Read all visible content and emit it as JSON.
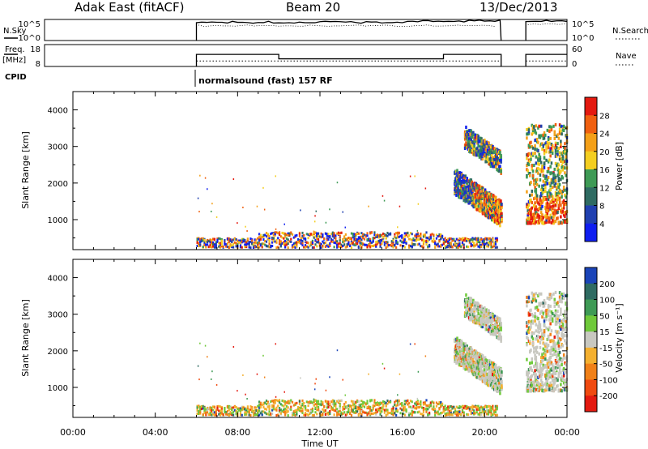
{
  "header": {
    "station": "Adak East (fitACF)",
    "beam": "Beam 20",
    "date": "13/Dec/2013"
  },
  "nsky": {
    "label": "N.Sky",
    "ticks": [
      "10^5",
      "10^0"
    ],
    "right_ticks": [
      "10^5",
      "10^0"
    ],
    "right_label": "N.Search"
  },
  "freq": {
    "label": "Freq.",
    "unit": "[MHz]",
    "ticks": [
      "18",
      "8"
    ],
    "right_ticks": [
      "60",
      "0"
    ],
    "right_label": "Nave"
  },
  "cpid": {
    "label": "CPID",
    "text": "normalsound (fast) 157 RF"
  },
  "x_axis": {
    "label": "Time UT",
    "ticks": [
      "00:00",
      "04:00",
      "08:00",
      "12:00",
      "16:00",
      "20:00",
      "00:00"
    ]
  },
  "colors": {
    "power": [
      "#0f1ef0",
      "#2040b0",
      "#2f6b62",
      "#3e9a55",
      "#f4ce20",
      "#f4a018",
      "#f06010",
      "#e41a10"
    ],
    "velocity": [
      "#e41a10",
      "#f04a10",
      "#f08018",
      "#f4b030",
      "#c8c8c0",
      "#6fc93a",
      "#3e9a55",
      "#2f6b62",
      "#1a44b8"
    ]
  },
  "chart_data": [
    {
      "type": "line",
      "panel": "N.Sky / N.Search",
      "x_units": "hours UT",
      "segments": [
        {
          "x": [
            6.0,
            6.0,
            20.8,
            20.8
          ],
          "level": 0.82
        },
        {
          "x": [
            22.0,
            22.0,
            24.0
          ],
          "level": 0.9
        }
      ]
    },
    {
      "type": "line",
      "panel": "Frequency / Nave",
      "x_units": "hours UT",
      "frequency_mhz": [
        {
          "start": 6.0,
          "end": 10.0,
          "value": 13.5
        },
        {
          "start": 10.0,
          "end": 18.0,
          "value": 11.5
        },
        {
          "start": 18.0,
          "end": 20.8,
          "value": 13.5
        },
        {
          "start": 22.0,
          "end": 24.0,
          "value": 13.5
        }
      ],
      "nave": [
        {
          "start": 6.0,
          "end": 20.8,
          "value": 15
        },
        {
          "start": 22.0,
          "end": 24.0,
          "value": 15
        }
      ]
    },
    {
      "type": "heatmap",
      "title": "Power",
      "ylabel": "Slant Range [km]",
      "xlabel": "Time UT",
      "xlim": [
        0,
        24
      ],
      "ylim": [
        180,
        4500
      ],
      "yticks": [
        "1000",
        "2000",
        "3000",
        "4000"
      ],
      "colorbar": {
        "label": "Power [dB]",
        "ticks": [
          "28",
          "24",
          "20",
          "16",
          "12",
          "8",
          "4"
        ]
      },
      "regions": [
        {
          "name": "ground scatter band",
          "t": [
            6.0,
            20.5
          ],
          "range": [
            200,
            500
          ]
        },
        {
          "name": "upper band",
          "t": [
            19.0,
            20.8
          ],
          "range": [
            2500,
            3400
          ]
        },
        {
          "name": "lower band",
          "t": [
            18.5,
            20.8
          ],
          "range": [
            900,
            2200
          ]
        },
        {
          "name": "late block",
          "t": [
            22.0,
            24.0
          ],
          "range": [
            850,
            3500
          ]
        }
      ]
    },
    {
      "type": "heatmap",
      "title": "Velocity",
      "ylabel": "Slant Range [km]",
      "xlabel": "Time UT",
      "xlim": [
        0,
        24
      ],
      "ylim": [
        180,
        4500
      ],
      "yticks": [
        "1000",
        "2000",
        "3000",
        "4000"
      ],
      "colorbar": {
        "label": "Velocity [m s⁻¹]",
        "ticks": [
          "200",
          "100",
          "50",
          "15",
          "-15",
          "-50",
          "-100",
          "-200"
        ]
      }
    }
  ]
}
